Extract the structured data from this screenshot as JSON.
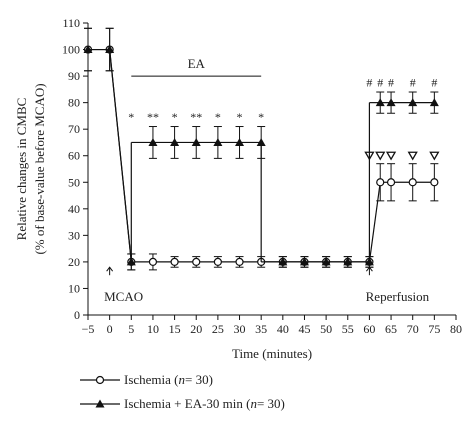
{
  "chart_data": {
    "type": "line",
    "title": "",
    "xlabel": "Time (minutes)",
    "ylabel_line1": "Relative changes in CMBC",
    "ylabel_line2": "(% of base-value before MCAO)",
    "xlim": [
      -5,
      80
    ],
    "ylim": [
      0,
      110
    ],
    "xticks": [
      -5,
      0,
      5,
      10,
      15,
      20,
      25,
      30,
      35,
      40,
      45,
      50,
      55,
      60,
      65,
      70,
      75,
      80
    ],
    "yticks": [
      0,
      10,
      20,
      30,
      40,
      50,
      60,
      70,
      80,
      90,
      100,
      110
    ],
    "grid": false,
    "legend_position": "bottom",
    "series": [
      {
        "id": "ischemia",
        "legend_prefix": "Ischemia (",
        "legend_n": "n",
        "legend_suffix": " = 30)",
        "marker": "open-circle",
        "color": "#111111",
        "x": [
          -5,
          0,
          5,
          10,
          15,
          20,
          25,
          30,
          35,
          40,
          45,
          50,
          55,
          60,
          62.5,
          65,
          70,
          75
        ],
        "y": [
          100,
          100,
          20,
          20,
          20,
          20,
          20,
          20,
          20,
          20,
          20,
          20,
          20,
          20,
          50,
          50,
          50,
          50
        ],
        "err": [
          8,
          8,
          3,
          3,
          2,
          2,
          2,
          2,
          2,
          2,
          2,
          2,
          2,
          2,
          7,
          7,
          7,
          7
        ]
      },
      {
        "id": "ischemia-ea",
        "legend_prefix": "Ischemia + EA-30 min (",
        "legend_n": "n",
        "legend_suffix": " = 30)",
        "marker": "filled-triangle",
        "color": "#111111",
        "x": [
          -5,
          0,
          5,
          10,
          15,
          20,
          25,
          30,
          35,
          40,
          45,
          50,
          55,
          60,
          62.5,
          65,
          70,
          75
        ],
        "y": [
          100,
          100,
          20,
          65,
          65,
          65,
          65,
          65,
          65,
          20,
          20,
          20,
          20,
          20,
          80,
          80,
          80,
          80
        ],
        "err": [
          8,
          8,
          3,
          6,
          6,
          6,
          6,
          6,
          6,
          2,
          2,
          2,
          2,
          2,
          4,
          4,
          4,
          4
        ],
        "splits": [
          {
            "from": 5,
            "to": 10
          },
          {
            "from": 35,
            "to": 40
          },
          {
            "from": 60,
            "to": 62.5
          }
        ]
      }
    ],
    "ea_bar": {
      "label": "EA",
      "x_start": 5,
      "x_end": 35,
      "y": 90
    },
    "annotations": [
      {
        "text": "MCAO",
        "x": 0,
        "y": 12
      },
      {
        "text": "Reperfusion",
        "x": 60,
        "y": 12
      }
    ],
    "arrows": [
      {
        "x": 0,
        "y": 18
      },
      {
        "x": 60,
        "y": 18
      }
    ],
    "markers_ea": [
      {
        "x": 5,
        "label": "*"
      },
      {
        "x": 10,
        "label": "**"
      },
      {
        "x": 15,
        "label": "*"
      },
      {
        "x": 20,
        "label": "**"
      },
      {
        "x": 25,
        "label": "*"
      },
      {
        "x": 30,
        "label": "*"
      },
      {
        "x": 35,
        "label": "*"
      }
    ],
    "markers_hash": [
      {
        "x": 60,
        "label": "#"
      },
      {
        "x": 62.5,
        "label": "#"
      },
      {
        "x": 65,
        "label": "#"
      },
      {
        "x": 70,
        "label": "#"
      },
      {
        "x": 75,
        "label": "#"
      }
    ],
    "markers_triangle": [
      60,
      62.5,
      65,
      70,
      75
    ]
  }
}
